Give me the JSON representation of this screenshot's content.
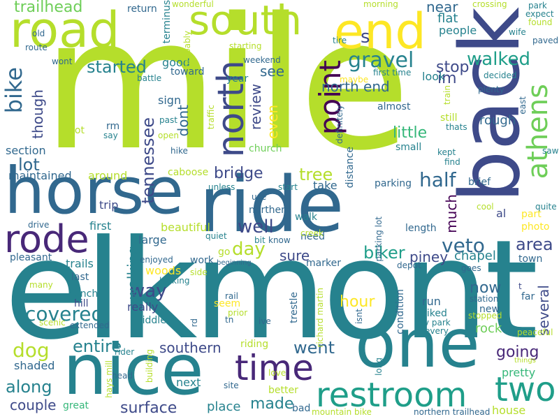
{
  "palette": [
    "#440154",
    "#482878",
    "#3e4a89",
    "#31688e",
    "#26828e",
    "#1f9e89",
    "#35b779",
    "#6ece58",
    "#b5de2b",
    "#fde725"
  ],
  "words": [
    {
      "text": "mile",
      "color": "#b5de2b"
    },
    {
      "text": "elkmont",
      "color": "#26828e"
    },
    {
      "text": "ride",
      "color": "#31688e"
    },
    {
      "text": "back",
      "color": "#3e4a89"
    },
    {
      "text": "one",
      "color": "#26828e"
    },
    {
      "text": "nice",
      "color": "#26828e"
    },
    {
      "text": "horse",
      "color": "#31688e"
    },
    {
      "text": "road",
      "color": "#b5de2b"
    },
    {
      "text": "end",
      "color": "#fde725"
    },
    {
      "text": "south",
      "color": "#b5de2b"
    },
    {
      "text": "rode",
      "color": "#482878"
    },
    {
      "text": "two",
      "color": "#1f9e89"
    },
    {
      "text": "time",
      "color": "#482878"
    },
    {
      "text": "restroom",
      "color": "#1f9e89"
    },
    {
      "text": "north",
      "color": "#3e4a89"
    },
    {
      "text": "athens",
      "color": "#6ece58"
    },
    {
      "text": "point",
      "color": "#440154"
    },
    {
      "text": "bike",
      "color": "#31688e"
    },
    {
      "text": "trailhead",
      "color": "#6ece58"
    },
    {
      "text": "gravel",
      "color": "#26828e"
    },
    {
      "text": "walked",
      "color": "#1f9e89"
    },
    {
      "text": "covered",
      "color": "#26828e"
    },
    {
      "text": "veto",
      "color": "#31688e"
    },
    {
      "text": "bridge",
      "color": "#3e4a89"
    },
    {
      "text": "tennessee",
      "color": "#3e4a89"
    },
    {
      "text": "half",
      "color": "#31688e"
    },
    {
      "text": "dog",
      "color": "#b5de2b"
    },
    {
      "text": "biker",
      "color": "#1f9e89"
    },
    {
      "text": "tree",
      "color": "#b5de2b"
    },
    {
      "text": "well",
      "color": "#3e4a89"
    },
    {
      "text": "entire",
      "color": "#26828e"
    },
    {
      "text": "surface",
      "color": "#3e4a89"
    },
    {
      "text": "made",
      "color": "#26828e"
    },
    {
      "text": "started",
      "color": "#26828e"
    },
    {
      "text": "stop",
      "color": "#3e4a89"
    },
    {
      "text": "little",
      "color": "#35b779"
    },
    {
      "text": "im",
      "color": "#3e4a89"
    },
    {
      "text": "way",
      "color": "#3e4a89"
    },
    {
      "text": "day",
      "color": "#b5de2b"
    },
    {
      "text": "went",
      "color": "#31688e"
    },
    {
      "text": "along",
      "color": "#26828e"
    },
    {
      "text": "lot",
      "color": "#31688e"
    },
    {
      "text": "area",
      "color": "#3e4a89"
    },
    {
      "text": "going",
      "color": "#482878"
    },
    {
      "text": "north end",
      "color": "#31688e"
    },
    {
      "text": "southern",
      "color": "#3e4a89"
    },
    {
      "text": "hour",
      "color": "#fde725"
    },
    {
      "text": "several",
      "color": "#3e4a89"
    },
    {
      "text": "couple",
      "color": "#3e4a89"
    },
    {
      "text": "review",
      "color": "#3e4a89"
    },
    {
      "text": "though",
      "color": "#3e4a89"
    },
    {
      "text": "now",
      "color": "#31688e"
    },
    {
      "text": "piney",
      "color": "#3e4a89"
    },
    {
      "text": "chapel",
      "color": "#26828e"
    },
    {
      "text": "pretty",
      "color": "#35b779"
    },
    {
      "text": "much",
      "color": "#440154"
    },
    {
      "text": "even",
      "color": "#fde725"
    },
    {
      "text": "near",
      "color": "#31688e"
    },
    {
      "text": "sure",
      "color": "#3e4a89"
    },
    {
      "text": "next",
      "color": "#26828e"
    },
    {
      "text": "place",
      "color": "#26828e"
    },
    {
      "text": "walking",
      "color": "#26828e"
    },
    {
      "text": "maintained",
      "color": "#31688e"
    },
    {
      "text": "section",
      "color": "#31688e"
    },
    {
      "text": "dont",
      "color": "#31688e"
    },
    {
      "text": "see",
      "color": "#31688e"
    },
    {
      "text": "flat",
      "color": "#26828e"
    },
    {
      "text": "people",
      "color": "#26828e"
    },
    {
      "text": "look",
      "color": "#26828e"
    },
    {
      "text": "rough",
      "color": "#31688e"
    },
    {
      "text": "run",
      "color": "#31688e"
    },
    {
      "text": "rock",
      "color": "#6ece58"
    },
    {
      "text": "good",
      "color": "#26828e"
    },
    {
      "text": "toward",
      "color": "#31688e"
    },
    {
      "text": "sign",
      "color": "#31688e"
    },
    {
      "text": "trip",
      "color": "#3e4a89"
    },
    {
      "text": "beautiful",
      "color": "#b5de2b"
    },
    {
      "text": "around",
      "color": "#b5de2b"
    },
    {
      "text": "first",
      "color": "#26828e"
    },
    {
      "text": "large",
      "color": "#31688e"
    },
    {
      "text": "woods",
      "color": "#fde725"
    },
    {
      "text": "trails",
      "color": "#26828e"
    },
    {
      "text": "last",
      "color": "#31688e"
    },
    {
      "text": "lunch",
      "color": "#26828e"
    },
    {
      "text": "hill",
      "color": "#3e4a89"
    },
    {
      "text": "really",
      "color": "#3e4a89"
    },
    {
      "text": "middle",
      "color": "#26828e"
    },
    {
      "text": "shaded",
      "color": "#31688e"
    },
    {
      "text": "great",
      "color": "#35b779"
    },
    {
      "text": "better",
      "color": "#b5de2b"
    },
    {
      "text": "riding",
      "color": "#b5de2b"
    },
    {
      "text": "seem",
      "color": "#fde725"
    },
    {
      "text": "work",
      "color": "#31688e"
    },
    {
      "text": "go",
      "color": "#b5de2b"
    },
    {
      "text": "church",
      "color": "#6ece58"
    },
    {
      "text": "caboose",
      "color": "#b5de2b"
    },
    {
      "text": "take",
      "color": "#31688e"
    },
    {
      "text": "walk",
      "color": "#26828e"
    },
    {
      "text": "need",
      "color": "#31688e"
    },
    {
      "text": "parking",
      "color": "#31688e"
    },
    {
      "text": "northern",
      "color": "#31688e"
    },
    {
      "text": "year",
      "color": "#26828e"
    },
    {
      "text": "weekend",
      "color": "#31688e"
    },
    {
      "text": "maybe",
      "color": "#fde725"
    },
    {
      "text": "almost",
      "color": "#31688e"
    },
    {
      "text": "small",
      "color": "#26828e"
    },
    {
      "text": "brief",
      "color": "#31688e"
    },
    {
      "text": "length",
      "color": "#31688e"
    },
    {
      "text": "new",
      "color": "#31688e"
    },
    {
      "text": "biked",
      "color": "#26828e"
    },
    {
      "text": "far",
      "color": "#31688e"
    },
    {
      "text": "town",
      "color": "#31688e"
    },
    {
      "text": "al",
      "color": "#3e4a89"
    },
    {
      "text": "photo",
      "color": "#fde725"
    },
    {
      "text": "part",
      "color": "#fde725"
    },
    {
      "text": "rm",
      "color": "#31688e"
    },
    {
      "text": "say",
      "color": "#26828e"
    },
    {
      "text": "got",
      "color": "#b5de2b"
    },
    {
      "text": "past",
      "color": "#26828e"
    },
    {
      "text": "battle",
      "color": "#26828e"
    },
    {
      "text": "terminus",
      "color": "#26828e"
    },
    {
      "text": "return",
      "color": "#31688e"
    },
    {
      "text": "wonderful",
      "color": "#b5de2b"
    },
    {
      "text": "morning",
      "color": "#b5de2b"
    },
    {
      "text": "crossing",
      "color": "#b5de2b"
    },
    {
      "text": "park",
      "color": "#26828e"
    },
    {
      "text": "expect",
      "color": "#26828e"
    },
    {
      "text": "found",
      "color": "#b5de2b"
    },
    {
      "text": "wife",
      "color": "#26828e"
    },
    {
      "text": "paved",
      "color": "#31688e"
    },
    {
      "text": "old",
      "color": "#31688e"
    },
    {
      "text": "route",
      "color": "#31688e"
    },
    {
      "text": "wont",
      "color": "#31688e"
    },
    {
      "text": "probably",
      "color": "#b5de2b"
    },
    {
      "text": "starting",
      "color": "#b5de2b"
    },
    {
      "text": "tire",
      "color": "#26828e"
    },
    {
      "text": "first time",
      "color": "#26828e"
    },
    {
      "text": "decided",
      "color": "#26828e"
    },
    {
      "text": "train",
      "color": "#b5de2b"
    },
    {
      "text": "plenty",
      "color": "#31688e"
    },
    {
      "text": "east",
      "color": "#31688e"
    },
    {
      "text": "traffic",
      "color": "#b5de2b"
    },
    {
      "text": "definitely",
      "color": "#31688e"
    },
    {
      "text": "still",
      "color": "#b5de2b"
    },
    {
      "text": "thats",
      "color": "#26828e"
    },
    {
      "text": "kept",
      "color": "#26828e"
    },
    {
      "text": "find",
      "color": "#26828e"
    },
    {
      "text": "open",
      "color": "#b5de2b"
    },
    {
      "text": "hike",
      "color": "#31688e"
    },
    {
      "text": "unless",
      "color": "#26828e"
    },
    {
      "text": "start",
      "color": "#26828e"
    },
    {
      "text": "use",
      "color": "#31688e"
    },
    {
      "text": "bit",
      "color": "#26828e"
    },
    {
      "text": "know",
      "color": "#31688e"
    },
    {
      "text": "prior",
      "color": "#b5de2b"
    },
    {
      "text": "quiet",
      "color": "#26828e"
    },
    {
      "text": "creek",
      "color": "#b5de2b"
    },
    {
      "text": "cool",
      "color": "#b5de2b"
    },
    {
      "text": "quite",
      "color": "#26828e"
    },
    {
      "text": "saw",
      "color": "#26828e"
    },
    {
      "text": "distance",
      "color": "#31688e"
    },
    {
      "text": "drive",
      "color": "#31688e"
    },
    {
      "text": "pleasant",
      "color": "#31688e"
    },
    {
      "text": "enjoyed",
      "color": "#31688e"
    },
    {
      "text": "looking",
      "color": "#26828e"
    },
    {
      "text": "beginning",
      "color": "#31688e"
    },
    {
      "text": "side",
      "color": "#b5de2b"
    },
    {
      "text": "marker",
      "color": "#31688e"
    },
    {
      "text": "depot",
      "color": "#31688e"
    },
    {
      "text": "goes",
      "color": "#31688e"
    },
    {
      "text": "station",
      "color": "#31688e"
    },
    {
      "text": "stopped",
      "color": "#b5de2b"
    },
    {
      "text": "many",
      "color": "#b5de2b"
    },
    {
      "text": "rail",
      "color": "#31688e"
    },
    {
      "text": "rd",
      "color": "#31688e"
    },
    {
      "text": "tn",
      "color": "#31688e"
    },
    {
      "text": "ive",
      "color": "#31688e"
    },
    {
      "text": "trestle",
      "color": "#31688e"
    },
    {
      "text": "richard martin",
      "color": "#b5de2b"
    },
    {
      "text": "isnt",
      "color": "#31688e"
    },
    {
      "text": "condition",
      "color": "#31688e"
    },
    {
      "text": "rv park",
      "color": "#26828e"
    },
    {
      "text": "every",
      "color": "#26828e"
    },
    {
      "text": "things",
      "color": "#b5de2b"
    },
    {
      "text": "peaceful",
      "color": "#b5de2b"
    },
    {
      "text": "scenic",
      "color": "#b5de2b"
    },
    {
      "text": "extended",
      "color": "#31688e"
    },
    {
      "text": "rider",
      "color": "#26828e"
    },
    {
      "text": "head",
      "color": "#31688e"
    },
    {
      "text": "hays mill",
      "color": "#b5de2b"
    },
    {
      "text": "building",
      "color": "#b5de2b"
    },
    {
      "text": "site",
      "color": "#31688e"
    },
    {
      "text": "love",
      "color": "#b5de2b"
    },
    {
      "text": "long",
      "color": "#26828e"
    },
    {
      "text": "bad",
      "color": "#31688e"
    },
    {
      "text": "mountain bike",
      "color": "#b5de2b"
    },
    {
      "text": "northern trailhead",
      "color": "#31688e"
    },
    {
      "text": "house",
      "color": "#b5de2b"
    },
    {
      "text": "parking lot",
      "color": "#31688e"
    },
    {
      "text": "s",
      "color": "#3e4a89"
    },
    {
      "text": "t",
      "color": "#3e4a89"
    }
  ]
}
